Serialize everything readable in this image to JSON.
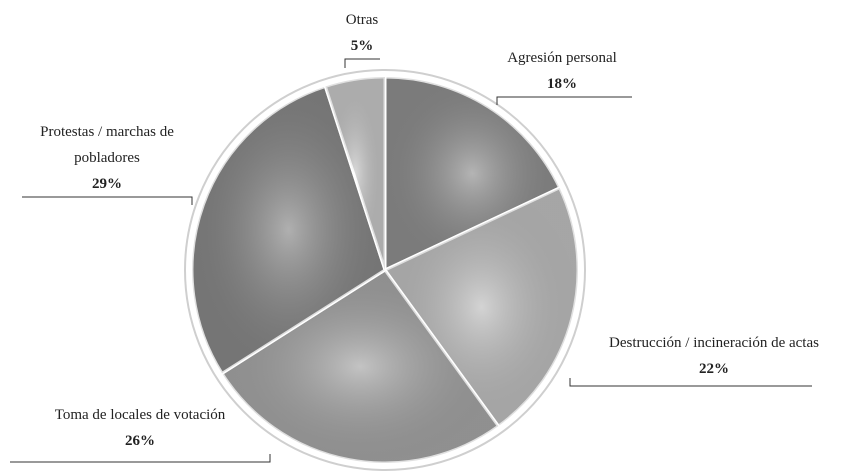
{
  "chart_data": {
    "type": "pie",
    "categories": [
      "Agresión personal",
      "Destrucción / incineración de actas",
      "Toma de locales de votación",
      "Protestas / marchas de pobladores",
      "Otras"
    ],
    "values": [
      18,
      22,
      26,
      29,
      5
    ],
    "value_labels": [
      "18%",
      "22%",
      "26%",
      "29%",
      "5%"
    ],
    "colors": [
      "#8c8c8c",
      "#bcbcbc",
      "#a3a3a3",
      "#858585",
      "#c4c4c4"
    ]
  }
}
